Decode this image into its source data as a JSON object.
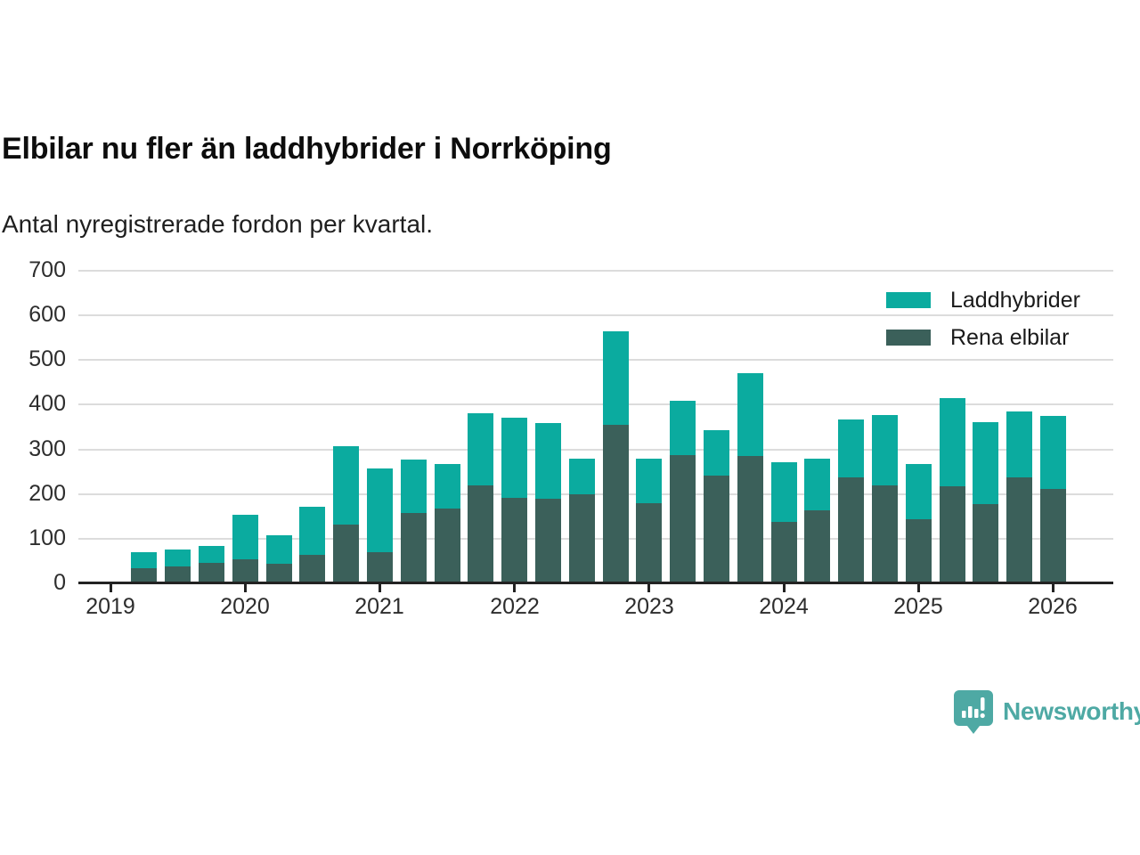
{
  "title": "Elbilar nu fler än laddhybrider i Norrköping",
  "subtitle": "Antal nyregistrerade fordon per kvartal.",
  "legend": {
    "items": [
      {
        "label": "Laddhybrider",
        "color": "#0bab9f"
      },
      {
        "label": "Rena elbilar",
        "color": "#3b605a"
      }
    ]
  },
  "branding": {
    "name": "Newsworthy",
    "color": "#4ea9a4",
    "icon": "newsworthy-speech-bubble-bar-chart-icon"
  },
  "chart_data": {
    "type": "bar",
    "stacked": true,
    "title": "Elbilar nu fler än laddhybrider i Norrköping",
    "subtitle": "Antal nyregistrerade fordon per kvartal.",
    "xlabel": "",
    "ylabel": "",
    "ylim": [
      0,
      700
    ],
    "y_tick_step": 100,
    "grid": "horizontal",
    "legend_position": "top-right",
    "categories": [
      "2019 Q2",
      "2019 Q3",
      "2019 Q4",
      "2020 Q1",
      "2020 Q2",
      "2020 Q3",
      "2020 Q4",
      "2021 Q1",
      "2021 Q2",
      "2021 Q3",
      "2021 Q4",
      "2022 Q1",
      "2022 Q2",
      "2022 Q3",
      "2022 Q4",
      "2023 Q1",
      "2023 Q2",
      "2023 Q3",
      "2023 Q4",
      "2024 Q1",
      "2024 Q2",
      "2024 Q3",
      "2024 Q4",
      "2025 Q1",
      "2025 Q2",
      "2025 Q3",
      "2025 Q4",
      "2026 Q1"
    ],
    "x_tick_labels": [
      "2019",
      "2020",
      "2021",
      "2022",
      "2023",
      "2024",
      "2025",
      "2026"
    ],
    "y_tick_labels": [
      "0",
      "100",
      "200",
      "300",
      "400",
      "500",
      "600",
      "700"
    ],
    "stack_order_bottom_to_top": [
      "Rena elbilar",
      "Laddhybrider"
    ],
    "series": [
      {
        "name": "Rena elbilar",
        "color": "#3b605a",
        "values": [
          32,
          35,
          43,
          51,
          41,
          62,
          129,
          67,
          155,
          165,
          217,
          190,
          188,
          198,
          352,
          177,
          285,
          240,
          284,
          135,
          161,
          235,
          217,
          142,
          215,
          176,
          235,
          210
        ]
      },
      {
        "name": "Laddhybrider",
        "color": "#0bab9f",
        "values": [
          36,
          38,
          39,
          100,
          64,
          108,
          177,
          189,
          120,
          100,
          161,
          178,
          169,
          79,
          211,
          100,
          122,
          101,
          184,
          135,
          116,
          130,
          158,
          123,
          197,
          182,
          148,
          163
        ]
      }
    ]
  }
}
